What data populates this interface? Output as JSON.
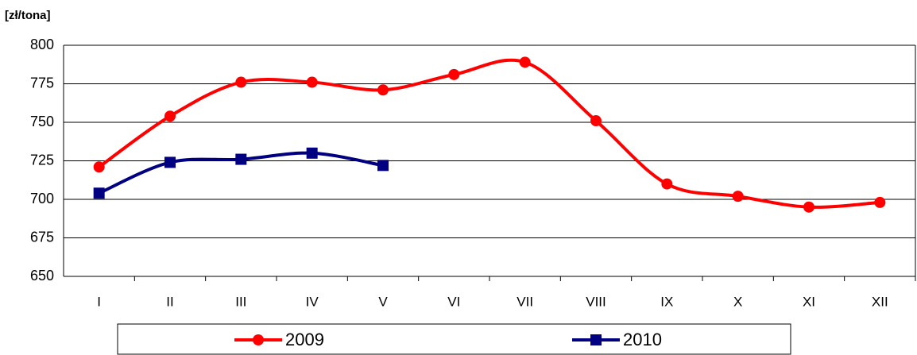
{
  "chart_data": {
    "type": "line",
    "y_label": "[zł/tona]",
    "categories": [
      "I",
      "II",
      "III",
      "IV",
      "V",
      "VI",
      "VII",
      "VIII",
      "IX",
      "X",
      "XI",
      "XII"
    ],
    "series": [
      {
        "name": "2009",
        "color": "#ff0000",
        "marker": "circle",
        "values": [
          721,
          754,
          776,
          776,
          771,
          781,
          789,
          751,
          710,
          702,
          695,
          698
        ]
      },
      {
        "name": "2010",
        "color": "#000080",
        "marker": "square",
        "values": [
          704,
          724,
          726,
          730,
          722,
          null,
          null,
          null,
          null,
          null,
          null,
          null
        ]
      }
    ],
    "ylim": [
      650,
      800
    ],
    "yticks": [
      650,
      675,
      700,
      725,
      750,
      775,
      800
    ],
    "grid": true,
    "smooth": true,
    "legend": "bottom"
  }
}
